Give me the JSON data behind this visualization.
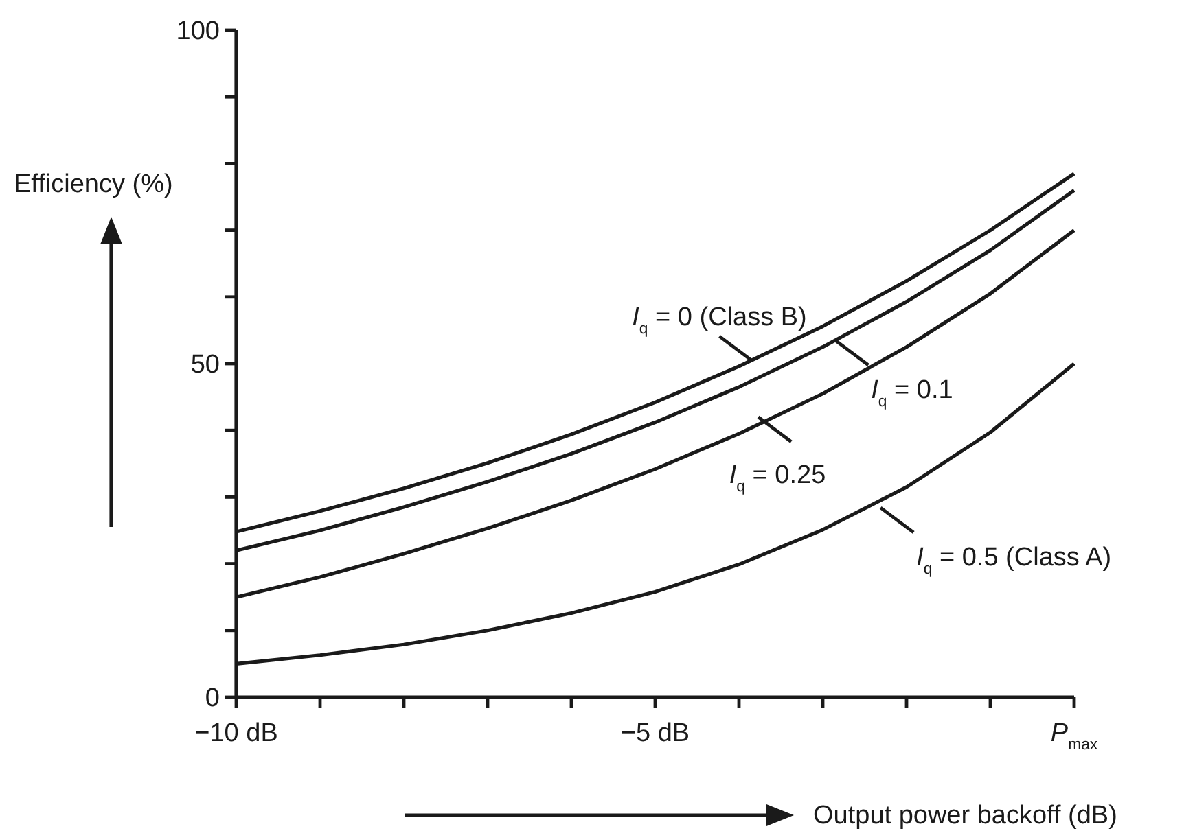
{
  "chart_data": {
    "type": "line",
    "xlabel": "Output power backoff (dB)",
    "ylabel": "Efficiency (%)",
    "x": [
      -10,
      -9,
      -8,
      -7,
      -6,
      -5,
      -4,
      -3,
      -2,
      -1,
      0
    ],
    "series": [
      {
        "color": "#1a1a1a",
        "values": [
          24.8,
          27.9,
          31.3,
          35.1,
          39.4,
          44.2,
          49.6,
          55.6,
          62.4,
          70,
          78.5
        ]
      },
      {
        "color": "#1a1a1a",
        "values": [
          22,
          25,
          28.5,
          32.3,
          36.5,
          41.2,
          46.5,
          52.5,
          59.3,
          67,
          76
        ]
      },
      {
        "color": "#1a1a1a",
        "values": [
          15,
          18,
          21.5,
          25.3,
          29.5,
          34.2,
          39.5,
          45.5,
          52.5,
          60.5,
          70
        ]
      },
      {
        "color": "#1a1a1a",
        "values": [
          5,
          6.3,
          7.9,
          10,
          12.6,
          15.8,
          19.9,
          25.1,
          31.5,
          39.7,
          50
        ]
      }
    ],
    "xlim": [
      -10,
      0
    ],
    "xticks": [
      {
        "value": -10,
        "label": "−10 dB"
      },
      {
        "value": -9,
        "label": null
      },
      {
        "value": -8,
        "label": null
      },
      {
        "value": -7,
        "label": null
      },
      {
        "value": -6,
        "label": null
      },
      {
        "value": -5,
        "label": "−5 dB"
      },
      {
        "value": -4,
        "label": null
      },
      {
        "value": -3,
        "label": null
      },
      {
        "value": -2,
        "label": null
      },
      {
        "value": -1,
        "label": null
      },
      {
        "value": 0,
        "label": "P$_{max}$"
      }
    ],
    "ylim": [
      0,
      100
    ],
    "yticks": [
      0,
      {
        "value": 10,
        "label": null
      },
      {
        "value": 20,
        "label": null
      },
      {
        "value": 30,
        "label": null
      },
      {
        "value": 40,
        "label": null
      },
      50,
      {
        "value": 60,
        "label": null
      },
      {
        "value": 70,
        "label": null
      },
      {
        "value": 80,
        "label": null
      },
      {
        "value": 90,
        "label": null
      },
      100
    ],
    "annotations": [
      {
        "text": "I$_{q}$ = 0 (Class B)",
        "x": -3.84,
        "y": 50.4
      },
      {
        "text": "I$_{q}$ = 0.1",
        "x": -2.85,
        "y": 53.5
      },
      {
        "text": "I$_{q}$ = 0.25",
        "x": -3.77,
        "y": 42
      },
      {
        "text": "I$_{q}$ = 0.5 (Class A)",
        "x": -2.31,
        "y": 28.4
      }
    ],
    "grid": false,
    "marker": "none",
    "line_style": "solid"
  }
}
